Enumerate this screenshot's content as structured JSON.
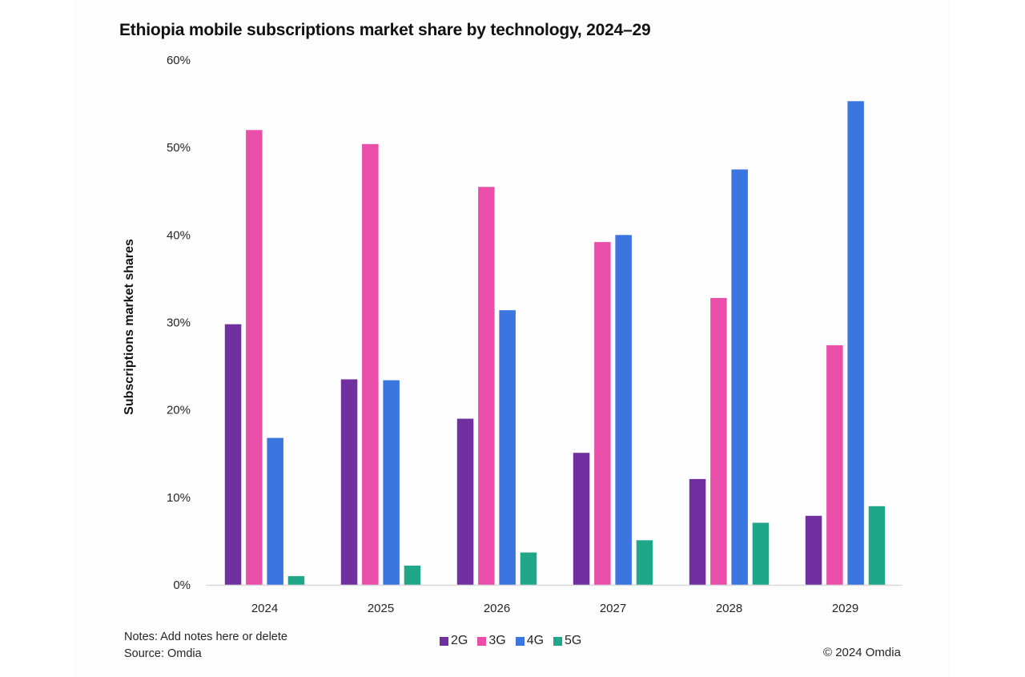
{
  "chart_data": {
    "type": "bar",
    "title": "Ethiopia mobile subscriptions market share by technology, 2024–29",
    "xlabel": "",
    "ylabel": "Subscriptions market shares",
    "ylim": [
      0,
      60
    ],
    "y_ticks": [
      0,
      10,
      20,
      30,
      40,
      50,
      60
    ],
    "y_tick_labels": [
      "0%",
      "10%",
      "20%",
      "30%",
      "40%",
      "50%",
      "60%"
    ],
    "grid": false,
    "legend_position": "bottom-center",
    "categories": [
      "2024",
      "2025",
      "2026",
      "2027",
      "2028",
      "2029"
    ],
    "series": [
      {
        "name": "2G",
        "color": "#7030a0",
        "values": [
          29.8,
          23.5,
          19.0,
          15.1,
          12.1,
          7.9
        ]
      },
      {
        "name": "3G",
        "color": "#e94fa8",
        "values": [
          52.0,
          50.4,
          45.5,
          39.2,
          32.8,
          27.4
        ]
      },
      {
        "name": "4G",
        "color": "#3a75e0",
        "values": [
          16.8,
          23.4,
          31.4,
          40.0,
          47.5,
          55.3
        ]
      },
      {
        "name": "5G",
        "color": "#20a789",
        "values": [
          1.0,
          2.2,
          3.7,
          5.1,
          7.1,
          9.0
        ]
      }
    ]
  },
  "footer": {
    "notes": "Notes: Add notes here or delete",
    "source": "Source: Omdia",
    "copyright": "© 2024 Omdia"
  }
}
